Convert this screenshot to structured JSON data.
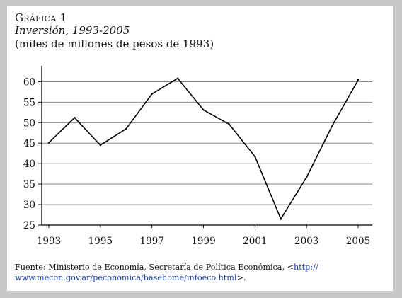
{
  "figure": {
    "label": "Gráfica 1",
    "title": "Inversión, 1993-2005",
    "subtitle": "(miles de millones de pesos de 1993)",
    "source": {
      "prefix": "Fuente: Ministerio de Economía, Secretaría de Política Económica, <",
      "link_a": "http://",
      "link_b": "www.mecon.gov.ar/peconomica/basehome/infoeco.html",
      "suffix": ">."
    }
  },
  "chart_data": {
    "type": "line",
    "title": "Inversión, 1993-2005",
    "subtitle": "(miles de millones de pesos de 1993)",
    "xlabel": "",
    "ylabel": "",
    "x": [
      1993,
      1994,
      1995,
      1996,
      1997,
      1998,
      1999,
      2000,
      2001,
      2002,
      2003,
      2004,
      2005
    ],
    "series": [
      {
        "values": [
          45.1,
          51.2,
          44.5,
          48.5,
          57.0,
          60.8,
          53.1,
          49.6,
          41.7,
          26.5,
          36.7,
          49.3,
          60.4
        ]
      }
    ],
    "x_ticks": [
      1993,
      1995,
      1997,
      1999,
      2001,
      2003,
      2005
    ],
    "y_ticks": [
      25,
      30,
      35,
      40,
      45,
      50,
      55,
      60
    ],
    "xlim": [
      1993,
      2005
    ],
    "ylim": [
      25,
      63
    ],
    "grid": "horizontal",
    "line_color": "#000000",
    "grid_color": "#7a7a7a"
  }
}
